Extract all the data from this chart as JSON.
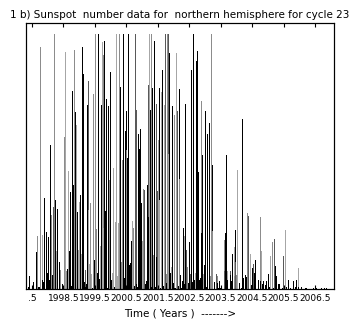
{
  "title": "1 b) Sunspot  number data for  northern hemisphere for cycle 23",
  "xlabel": "Time ( Years )  ------->",
  "xlim": [
    1997.3,
    2007.1
  ],
  "ylim": [
    0,
    115
  ],
  "xticks": [
    1997.5,
    1998.5,
    1999.5,
    2000.5,
    2001.5,
    2002.5,
    2003.5,
    2004.5,
    2005.5,
    2006.5
  ],
  "xtick_labels": [
    ".5",
    "1998.5",
    "1999.5",
    "2000.5",
    "2001.5",
    "2002.5",
    "2003.5",
    "2004.5",
    "2005.5",
    "2006.5"
  ],
  "seed": 17,
  "background_color": "#ffffff",
  "title_fontsize": 7.5,
  "xlabel_fontsize": 7.5,
  "tick_fontsize": 6.5
}
